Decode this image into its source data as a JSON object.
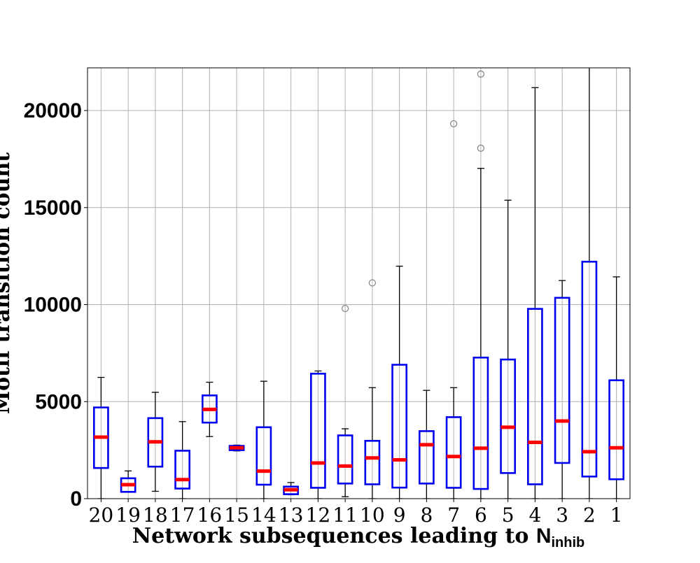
{
  "chart_data": {
    "type": "box",
    "xlabel": "Network subsequences leading to ",
    "xlabel_math": "N",
    "xlabel_math_sub": "inhib",
    "ylabel": "Motif transition count",
    "ylim": [
      0,
      22200
    ],
    "yticks": [
      0,
      5000,
      10000,
      15000,
      20000
    ],
    "ytick_labels": [
      "0",
      "5000",
      "10000",
      "15000",
      "20000"
    ],
    "grid": true,
    "colors": {
      "box": "#0000ee",
      "median": "#ff0000",
      "whisker": "#000000",
      "flier": "#808080",
      "grid": "#b0b0b0"
    },
    "categories": [
      "20",
      "19",
      "18",
      "17",
      "16",
      "15",
      "14",
      "13",
      "12",
      "11",
      "10",
      "9",
      "8",
      "7",
      "6",
      "5",
      "4",
      "3",
      "2",
      "1"
    ],
    "boxes": [
      {
        "label": "20",
        "whislo": 0,
        "q1": 1580,
        "med": 3170,
        "q3": 4700,
        "whishi": 6250,
        "fliers": []
      },
      {
        "label": "19",
        "whislo": 350,
        "q1": 350,
        "med": 720,
        "q3": 1050,
        "whishi": 1430,
        "fliers": []
      },
      {
        "label": "18",
        "whislo": 380,
        "q1": 1650,
        "med": 2930,
        "q3": 4150,
        "whishi": 5480,
        "fliers": []
      },
      {
        "label": "17",
        "whislo": 0,
        "q1": 520,
        "med": 980,
        "q3": 2470,
        "whishi": 3970,
        "fliers": []
      },
      {
        "label": "16",
        "whislo": 3200,
        "q1": 3920,
        "med": 4600,
        "q3": 5320,
        "whishi": 6000,
        "fliers": []
      },
      {
        "label": "15",
        "whislo": 2460,
        "q1": 2500,
        "med": 2620,
        "q3": 2720,
        "whishi": 2760,
        "fliers": []
      },
      {
        "label": "14",
        "whislo": 0,
        "q1": 720,
        "med": 1420,
        "q3": 3680,
        "whishi": 6050,
        "fliers": []
      },
      {
        "label": "13",
        "whislo": 200,
        "q1": 230,
        "med": 460,
        "q3": 620,
        "whishi": 830,
        "fliers": []
      },
      {
        "label": "12",
        "whislo": 0,
        "q1": 560,
        "med": 1840,
        "q3": 6440,
        "whishi": 6580,
        "fliers": []
      },
      {
        "label": "11",
        "whislo": 100,
        "q1": 780,
        "med": 1680,
        "q3": 3260,
        "whishi": 3600,
        "fliers": [
          9800
        ]
      },
      {
        "label": "10",
        "whislo": 0,
        "q1": 740,
        "med": 2100,
        "q3": 2980,
        "whishi": 5720,
        "fliers": [
          11120
        ]
      },
      {
        "label": "9",
        "whislo": 0,
        "q1": 570,
        "med": 2000,
        "q3": 6900,
        "whishi": 11980,
        "fliers": []
      },
      {
        "label": "8",
        "whislo": 0,
        "q1": 780,
        "med": 2780,
        "q3": 3480,
        "whishi": 5580,
        "fliers": []
      },
      {
        "label": "7",
        "whislo": 0,
        "q1": 560,
        "med": 2170,
        "q3": 4200,
        "whishi": 5720,
        "fliers": [
          19320
        ]
      },
      {
        "label": "6",
        "whislo": 0,
        "q1": 500,
        "med": 2600,
        "q3": 7270,
        "whishi": 17020,
        "fliers": [
          18060,
          21880
        ]
      },
      {
        "label": "5",
        "whislo": 0,
        "q1": 1320,
        "med": 3680,
        "q3": 7170,
        "whishi": 15380,
        "fliers": []
      },
      {
        "label": "4",
        "whislo": 0,
        "q1": 740,
        "med": 2900,
        "q3": 9780,
        "whishi": 21180,
        "fliers": []
      },
      {
        "label": "3",
        "whislo": 0,
        "q1": 1840,
        "med": 4000,
        "q3": 10350,
        "whishi": 11240,
        "fliers": []
      },
      {
        "label": "2",
        "whislo": 0,
        "q1": 1140,
        "med": 2420,
        "q3": 12210,
        "whishi": 22400,
        "fliers": []
      },
      {
        "label": "1",
        "whislo": 0,
        "q1": 1000,
        "med": 2620,
        "q3": 6100,
        "whishi": 11430,
        "fliers": []
      }
    ]
  }
}
